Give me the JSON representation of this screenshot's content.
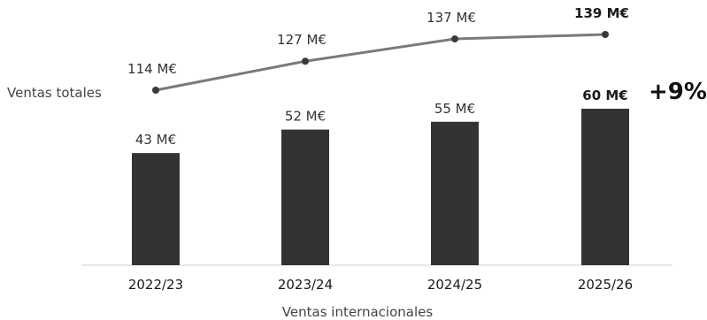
{
  "chart_data": {
    "type": "bar",
    "categories": [
      "2022/23",
      "2023/24",
      "2024/25",
      "2025/26"
    ],
    "series": [
      {
        "name": "Ventas internacionales",
        "type": "bar",
        "values": [
          43,
          52,
          55,
          60
        ],
        "labels": [
          "43 M€",
          "52 M€",
          "55 M€",
          "60 M€"
        ]
      },
      {
        "name": "Ventas totales",
        "type": "line",
        "values": [
          114,
          127,
          137,
          139
        ],
        "labels": [
          "114 M€",
          "127 M€",
          "137 M€",
          "139 M€"
        ]
      }
    ],
    "xlabel": "Ventas internacionales",
    "line_label": "Ventas totales",
    "change_label": "+9%",
    "unit": "M€",
    "colors": {
      "bar": "#333333",
      "line": "#7a7a7a",
      "marker": "#3a3a3a"
    },
    "grid": false,
    "legend": "none"
  }
}
